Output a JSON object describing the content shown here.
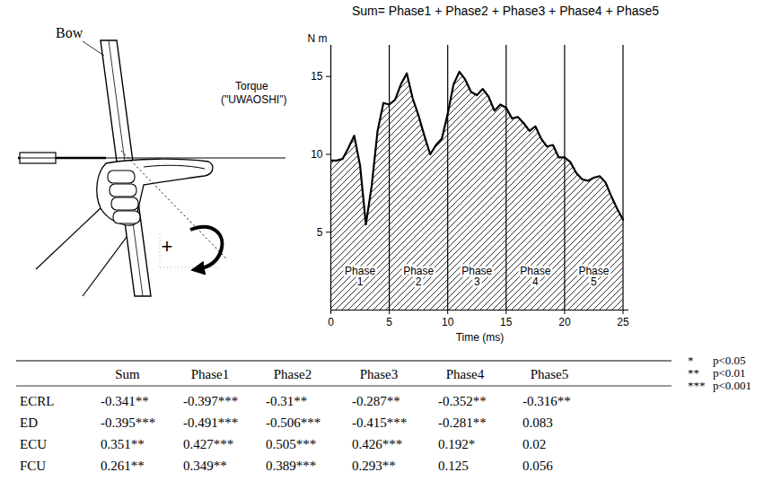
{
  "diagram": {
    "bow_label": "Bow",
    "torque_label": "Torque",
    "torque_name": "(\"UWAOSHI\")",
    "sign": "+"
  },
  "chart_data": {
    "type": "area",
    "title": "Sum= Phase1 + Phase2 + Phase3 + Phase4 + Phase5",
    "y_label": "N m",
    "x_label": "Time (ms)",
    "color": "#000000",
    "x": [
      0,
      0.5,
      1,
      1.5,
      2,
      2.5,
      3,
      3.5,
      4,
      4.5,
      5,
      5.5,
      6,
      6.5,
      7,
      7.5,
      8,
      8.5,
      9,
      9.5,
      10,
      10.5,
      11,
      11.5,
      12,
      12.5,
      13,
      13.5,
      14,
      14.5,
      15,
      15.5,
      16,
      16.5,
      17,
      17.5,
      18,
      18.5,
      19,
      19.5,
      20,
      20.5,
      21,
      21.5,
      22,
      22.5,
      23,
      23.5,
      24,
      24.5,
      25
    ],
    "values": [
      9.6,
      9.6,
      9.7,
      10.4,
      11.2,
      9.3,
      5.5,
      8.0,
      11.5,
      13.3,
      13.2,
      13.5,
      14.5,
      15.2,
      13.6,
      12.5,
      11.2,
      10.0,
      10.6,
      11.0,
      12.6,
      14.5,
      15.3,
      14.8,
      14.0,
      13.8,
      14.2,
      13.7,
      12.8,
      13.2,
      13.0,
      12.3,
      12.4,
      12.0,
      11.5,
      11.8,
      11.0,
      10.5,
      10.6,
      9.8,
      9.8,
      9.5,
      8.8,
      8.4,
      8.3,
      8.5,
      8.6,
      8.2,
      7.3,
      6.5,
      5.8
    ],
    "xlim": [
      0,
      25.5
    ],
    "ylim": [
      0,
      17
    ],
    "xticks": [
      0,
      5,
      10,
      15,
      20,
      25
    ],
    "yticks": [
      5,
      10,
      15
    ],
    "phases": [
      {
        "label": "Phase 1",
        "start": 0,
        "end": 5
      },
      {
        "label": "Phase 2",
        "start": 5,
        "end": 10
      },
      {
        "label": "Phase 3",
        "start": 10,
        "end": 15
      },
      {
        "label": "Phase 4",
        "start": 15,
        "end": 20
      },
      {
        "label": "Phase 5",
        "start": 20,
        "end": 25
      }
    ]
  },
  "table": {
    "columns": [
      "Sum",
      "Phase1",
      "Phase2",
      "Phase3",
      "Phase4",
      "Phase5"
    ],
    "rows": [
      {
        "label": "ECRL",
        "cells": [
          "-0.341**",
          "-0.397***",
          "-0.31**",
          "-0.287**",
          "-0.352**",
          "-0.316**"
        ]
      },
      {
        "label": "ED",
        "cells": [
          "-0.395***",
          "-0.491***",
          "-0.506***",
          "-0.415***",
          "-0.281**",
          "0.083"
        ]
      },
      {
        "label": "ECU",
        "cells": [
          "0.351**",
          "0.427***",
          "0.505***",
          "0.426***",
          "0.192*",
          "0.02"
        ]
      },
      {
        "label": "FCU",
        "cells": [
          "0.261**",
          "0.349**",
          "0.389***",
          "0.293**",
          "0.125",
          "0.056"
        ]
      }
    ],
    "significance": [
      {
        "mark": "*",
        "text": "p<0.05"
      },
      {
        "mark": "**",
        "text": "p<0.01"
      },
      {
        "mark": "***",
        "text": "p<0.001"
      }
    ]
  }
}
